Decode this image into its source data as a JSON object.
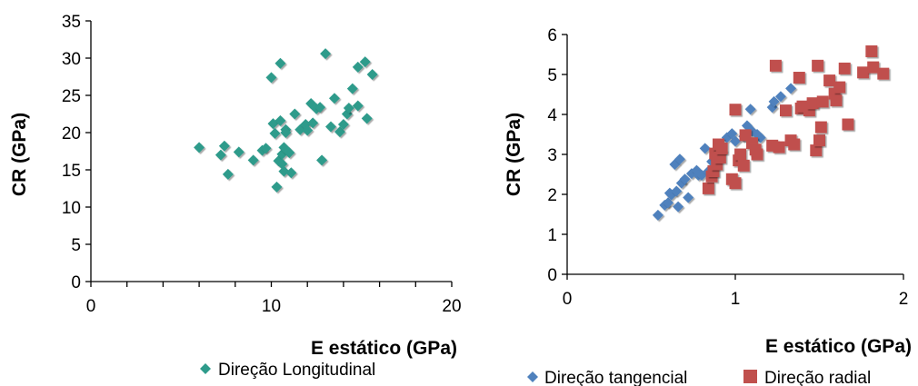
{
  "chart_data": [
    {
      "type": "scatter",
      "xlabel": "E estático (GPa)",
      "ylabel": "CR (GPa)",
      "xlim": [
        0,
        20
      ],
      "ylim": [
        0,
        35
      ],
      "x_ticks": [
        0,
        10,
        20
      ],
      "y_ticks": [
        0,
        5,
        10,
        15,
        20,
        25,
        30,
        35
      ],
      "grid": false,
      "legend_position": "bottom",
      "series": [
        {
          "name": "Direção Longitudinal",
          "color": "#2E9B8B",
          "marker": "diamond",
          "points": [
            [
              6.0,
              18.0
            ],
            [
              7.2,
              17.0
            ],
            [
              7.4,
              18.2
            ],
            [
              7.6,
              14.4
            ],
            [
              8.2,
              17.4
            ],
            [
              9.0,
              16.3
            ],
            [
              9.5,
              17.6
            ],
            [
              9.7,
              17.9
            ],
            [
              10.0,
              27.4
            ],
            [
              10.1,
              21.2
            ],
            [
              10.2,
              19.9
            ],
            [
              10.3,
              12.7
            ],
            [
              10.4,
              16.2
            ],
            [
              10.5,
              29.3
            ],
            [
              10.5,
              21.6
            ],
            [
              10.6,
              17.1
            ],
            [
              10.6,
              15.8
            ],
            [
              10.7,
              18.0
            ],
            [
              10.7,
              14.8
            ],
            [
              10.8,
              20.4
            ],
            [
              10.8,
              20.0
            ],
            [
              11.0,
              17.3
            ],
            [
              11.1,
              14.6
            ],
            [
              11.3,
              22.5
            ],
            [
              11.6,
              20.4
            ],
            [
              11.9,
              21.1
            ],
            [
              12.0,
              20.3
            ],
            [
              12.2,
              23.9
            ],
            [
              12.3,
              21.3
            ],
            [
              12.5,
              23.2
            ],
            [
              12.7,
              23.4
            ],
            [
              12.8,
              16.3
            ],
            [
              13.0,
              30.6
            ],
            [
              13.3,
              20.8
            ],
            [
              13.5,
              24.6
            ],
            [
              13.8,
              20.1
            ],
            [
              14.0,
              21.1
            ],
            [
              14.2,
              22.5
            ],
            [
              14.3,
              23.3
            ],
            [
              14.5,
              25.9
            ],
            [
              14.8,
              23.6
            ],
            [
              14.8,
              28.8
            ],
            [
              15.2,
              29.5
            ],
            [
              15.3,
              21.9
            ],
            [
              15.6,
              27.8
            ]
          ]
        }
      ]
    },
    {
      "type": "scatter",
      "xlabel": "E estático (GPa)",
      "ylabel": "CR (GPa)",
      "xlim": [
        0,
        2
      ],
      "ylim": [
        0,
        6
      ],
      "x_ticks": [
        0,
        1,
        2
      ],
      "y_ticks": [
        0,
        1,
        2,
        3,
        4,
        5,
        6
      ],
      "grid": false,
      "legend_position": "bottom",
      "series": [
        {
          "name": "Direção tangencial",
          "color": "#4F81BD",
          "marker": "diamond",
          "points": [
            [
              0.54,
              1.48
            ],
            [
              0.58,
              1.73
            ],
            [
              0.6,
              1.79
            ],
            [
              0.61,
              2.03
            ],
            [
              0.62,
              1.99
            ],
            [
              0.64,
              2.75
            ],
            [
              0.65,
              2.08
            ],
            [
              0.66,
              1.69
            ],
            [
              0.67,
              2.88
            ],
            [
              0.68,
              2.28
            ],
            [
              0.7,
              2.38
            ],
            [
              0.72,
              1.92
            ],
            [
              0.74,
              2.52
            ],
            [
              0.77,
              2.6
            ],
            [
              0.78,
              2.48
            ],
            [
              0.8,
              2.48
            ],
            [
              0.82,
              3.15
            ],
            [
              0.84,
              2.58
            ],
            [
              0.86,
              2.82
            ],
            [
              0.88,
              3.03
            ],
            [
              0.92,
              3.08
            ],
            [
              0.95,
              3.42
            ],
            [
              0.98,
              3.52
            ],
            [
              1.0,
              3.33
            ],
            [
              1.05,
              3.45
            ],
            [
              1.07,
              3.72
            ],
            [
              1.09,
              4.13
            ],
            [
              1.1,
              3.58
            ],
            [
              1.13,
              3.5
            ],
            [
              1.15,
              3.42
            ],
            [
              1.22,
              4.18
            ],
            [
              1.23,
              4.32
            ],
            [
              1.27,
              4.45
            ],
            [
              1.33,
              4.65
            ]
          ]
        },
        {
          "name": "Direção radial",
          "color": "#C0504D",
          "marker": "square",
          "points": [
            [
              0.84,
              2.15
            ],
            [
              0.86,
              2.45
            ],
            [
              0.87,
              2.58
            ],
            [
              0.88,
              3.02
            ],
            [
              0.89,
              2.75
            ],
            [
              0.9,
              3.25
            ],
            [
              0.91,
              2.92
            ],
            [
              0.92,
              3.15
            ],
            [
              0.98,
              2.38
            ],
            [
              1.0,
              2.28
            ],
            [
              1.0,
              4.12
            ],
            [
              1.02,
              2.85
            ],
            [
              1.03,
              3.0
            ],
            [
              1.05,
              2.72
            ],
            [
              1.06,
              3.48
            ],
            [
              1.1,
              3.28
            ],
            [
              1.12,
              3.12
            ],
            [
              1.13,
              3.0
            ],
            [
              1.22,
              3.22
            ],
            [
              1.24,
              5.22
            ],
            [
              1.26,
              3.18
            ],
            [
              1.3,
              4.1
            ],
            [
              1.33,
              3.35
            ],
            [
              1.35,
              3.25
            ],
            [
              1.38,
              4.92
            ],
            [
              1.39,
              4.15
            ],
            [
              1.4,
              4.2
            ],
            [
              1.44,
              4.1
            ],
            [
              1.46,
              4.28
            ],
            [
              1.48,
              3.1
            ],
            [
              1.49,
              5.22
            ],
            [
              1.5,
              3.35
            ],
            [
              1.51,
              3.68
            ],
            [
              1.52,
              4.32
            ],
            [
              1.56,
              4.85
            ],
            [
              1.59,
              4.52
            ],
            [
              1.6,
              4.35
            ],
            [
              1.62,
              4.68
            ],
            [
              1.65,
              5.15
            ],
            [
              1.67,
              3.75
            ],
            [
              1.76,
              5.05
            ],
            [
              1.81,
              5.58
            ],
            [
              1.82,
              5.18
            ],
            [
              1.88,
              5.02
            ]
          ]
        }
      ]
    }
  ]
}
